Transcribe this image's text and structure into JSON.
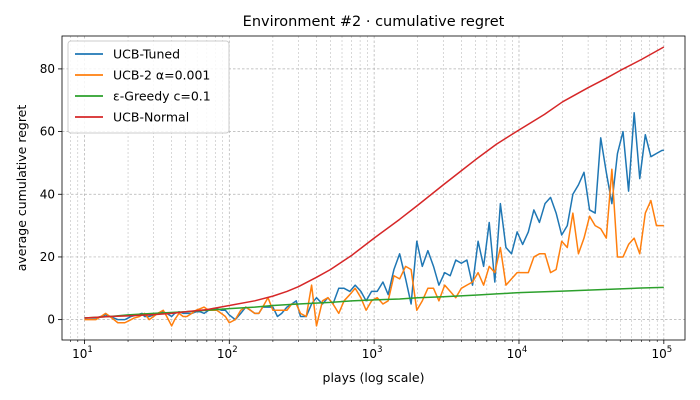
{
  "chart_data": {
    "type": "line",
    "title": "Environment #2 · cumulative regret",
    "xlabel": "plays (log scale)",
    "ylabel": "average cumulative regret",
    "xscale": "log",
    "xlim": [
      7,
      140000
    ],
    "ylim": [
      -6.5,
      90.5
    ],
    "xticks": [
      {
        "value": 10,
        "base": "10",
        "exp": "1"
      },
      {
        "value": 100,
        "base": "10",
        "exp": "2"
      },
      {
        "value": 1000,
        "base": "10",
        "exp": "3"
      },
      {
        "value": 10000,
        "base": "10",
        "exp": "4"
      },
      {
        "value": 100000,
        "base": "10",
        "exp": "5"
      }
    ],
    "yticks": [
      0,
      20,
      40,
      60,
      80
    ],
    "grid": true,
    "legend_position": "top-left",
    "series": [
      {
        "name": "UCB-Tuned",
        "color": "#1f77b4",
        "points": [
          [
            10,
            0.5
          ],
          [
            11,
            0.5
          ],
          [
            12,
            0.5
          ],
          [
            13,
            1
          ],
          [
            14,
            1.5
          ],
          [
            15,
            1
          ],
          [
            16,
            0.5
          ],
          [
            17,
            0
          ],
          [
            18,
            0
          ],
          [
            19,
            0
          ],
          [
            20,
            0.5
          ],
          [
            21,
            1
          ],
          [
            23,
            1.5
          ],
          [
            25,
            2
          ],
          [
            26,
            1
          ],
          [
            28,
            1
          ],
          [
            30,
            1.5
          ],
          [
            32,
            2
          ],
          [
            35,
            2.5
          ],
          [
            37,
            2
          ],
          [
            40,
            1
          ],
          [
            42,
            2
          ],
          [
            45,
            2.5
          ],
          [
            48,
            2
          ],
          [
            51,
            2
          ],
          [
            55,
            2
          ],
          [
            59,
            2.5
          ],
          [
            63,
            2.5
          ],
          [
            67,
            2
          ],
          [
            72,
            3
          ],
          [
            77,
            3.5
          ],
          [
            82,
            3.5
          ],
          [
            88,
            3
          ],
          [
            94,
            3
          ],
          [
            100,
            1.5
          ],
          [
            110,
            0
          ],
          [
            120,
            2
          ],
          [
            130,
            4
          ],
          [
            140,
            3
          ],
          [
            150,
            2
          ],
          [
            160,
            2
          ],
          [
            170,
            4
          ],
          [
            185,
            4
          ],
          [
            200,
            4
          ],
          [
            215,
            1
          ],
          [
            230,
            2
          ],
          [
            250,
            4
          ],
          [
            270,
            5
          ],
          [
            290,
            6
          ],
          [
            310,
            1
          ],
          [
            340,
            1
          ],
          [
            370,
            5
          ],
          [
            400,
            7
          ],
          [
            440,
            5
          ],
          [
            480,
            7
          ],
          [
            520,
            5
          ],
          [
            570,
            10
          ],
          [
            620,
            10
          ],
          [
            680,
            9
          ],
          [
            740,
            11
          ],
          [
            810,
            9
          ],
          [
            880,
            6
          ],
          [
            960,
            9
          ],
          [
            1050,
            9
          ],
          [
            1150,
            12
          ],
          [
            1250,
            8
          ],
          [
            1370,
            16
          ],
          [
            1500,
            21
          ],
          [
            1650,
            13
          ],
          [
            1800,
            5
          ],
          [
            1970,
            25
          ],
          [
            2150,
            17
          ],
          [
            2350,
            22
          ],
          [
            2570,
            17
          ],
          [
            2800,
            11
          ],
          [
            3070,
            15
          ],
          [
            3350,
            14
          ],
          [
            3660,
            19
          ],
          [
            4000,
            18
          ],
          [
            4370,
            19
          ],
          [
            4780,
            11
          ],
          [
            5220,
            25
          ],
          [
            5700,
            17
          ],
          [
            6230,
            31
          ],
          [
            6810,
            12
          ],
          [
            7440,
            37
          ],
          [
            8130,
            23
          ],
          [
            8880,
            21
          ],
          [
            9710,
            28
          ],
          [
            10600,
            24
          ],
          [
            11600,
            28
          ],
          [
            12670,
            35
          ],
          [
            13840,
            31
          ],
          [
            15120,
            37
          ],
          [
            16520,
            39
          ],
          [
            18050,
            34
          ],
          [
            19720,
            27
          ],
          [
            21550,
            30
          ],
          [
            23550,
            40
          ],
          [
            25730,
            43
          ],
          [
            28110,
            47
          ],
          [
            30720,
            35
          ],
          [
            33560,
            34
          ],
          [
            36670,
            58
          ],
          [
            40070,
            47
          ],
          [
            43780,
            37
          ],
          [
            47840,
            53
          ],
          [
            52270,
            60
          ],
          [
            57110,
            41
          ],
          [
            62400,
            66
          ],
          [
            68180,
            45
          ],
          [
            74490,
            59
          ],
          [
            81390,
            52
          ],
          [
            88930,
            53
          ],
          [
            97170,
            54
          ],
          [
            100000,
            54
          ]
        ]
      },
      {
        "name": "UCB-2 α=0.001",
        "color": "#ff7f0e",
        "points": [
          [
            10,
            0
          ],
          [
            11,
            0
          ],
          [
            12,
            0
          ],
          [
            13,
            1
          ],
          [
            14,
            2
          ],
          [
            15,
            1
          ],
          [
            16,
            0
          ],
          [
            17,
            -1
          ],
          [
            18,
            -1
          ],
          [
            19,
            -1
          ],
          [
            20,
            -0.5
          ],
          [
            22,
            0.5
          ],
          [
            24,
            1
          ],
          [
            26,
            2
          ],
          [
            28,
            0
          ],
          [
            30,
            1
          ],
          [
            32,
            2
          ],
          [
            35,
            3
          ],
          [
            37,
            1
          ],
          [
            40,
            -2
          ],
          [
            42,
            0
          ],
          [
            45,
            2
          ],
          [
            48,
            1
          ],
          [
            51,
            1
          ],
          [
            55,
            2
          ],
          [
            59,
            3
          ],
          [
            63,
            3.5
          ],
          [
            67,
            4
          ],
          [
            72,
            3
          ],
          [
            77,
            3
          ],
          [
            82,
            3
          ],
          [
            88,
            2
          ],
          [
            94,
            1
          ],
          [
            100,
            -1
          ],
          [
            110,
            0
          ],
          [
            120,
            3
          ],
          [
            130,
            4
          ],
          [
            140,
            3
          ],
          [
            150,
            2
          ],
          [
            160,
            2
          ],
          [
            170,
            4
          ],
          [
            185,
            7
          ],
          [
            200,
            3
          ],
          [
            215,
            3
          ],
          [
            230,
            3
          ],
          [
            250,
            3
          ],
          [
            270,
            5
          ],
          [
            290,
            5
          ],
          [
            310,
            2
          ],
          [
            340,
            1
          ],
          [
            370,
            11
          ],
          [
            400,
            -2
          ],
          [
            440,
            6
          ],
          [
            480,
            7
          ],
          [
            520,
            5
          ],
          [
            570,
            2
          ],
          [
            620,
            6
          ],
          [
            680,
            8
          ],
          [
            740,
            10
          ],
          [
            810,
            7
          ],
          [
            880,
            3
          ],
          [
            960,
            6
          ],
          [
            1050,
            7
          ],
          [
            1150,
            5
          ],
          [
            1250,
            6
          ],
          [
            1370,
            14
          ],
          [
            1500,
            13
          ],
          [
            1650,
            17
          ],
          [
            1800,
            16
          ],
          [
            1970,
            3
          ],
          [
            2150,
            6
          ],
          [
            2350,
            10
          ],
          [
            2570,
            10
          ],
          [
            2800,
            6
          ],
          [
            3070,
            11
          ],
          [
            3350,
            9
          ],
          [
            3660,
            7
          ],
          [
            4000,
            10
          ],
          [
            4370,
            11
          ],
          [
            4780,
            12
          ],
          [
            5220,
            15
          ],
          [
            5700,
            11
          ],
          [
            6230,
            17
          ],
          [
            6810,
            15
          ],
          [
            7440,
            23
          ],
          [
            8130,
            11
          ],
          [
            8880,
            13
          ],
          [
            9710,
            15
          ],
          [
            10600,
            15
          ],
          [
            11600,
            15
          ],
          [
            12670,
            20
          ],
          [
            13840,
            21
          ],
          [
            15120,
            21
          ],
          [
            16520,
            15
          ],
          [
            18050,
            16
          ],
          [
            19720,
            25
          ],
          [
            21550,
            23
          ],
          [
            23550,
            34
          ],
          [
            25730,
            21
          ],
          [
            28110,
            26
          ],
          [
            30720,
            33
          ],
          [
            33560,
            30
          ],
          [
            36670,
            29
          ],
          [
            40070,
            26
          ],
          [
            43780,
            48
          ],
          [
            47840,
            20
          ],
          [
            52270,
            20
          ],
          [
            57110,
            24
          ],
          [
            62400,
            26
          ],
          [
            68180,
            21
          ],
          [
            74490,
            34
          ],
          [
            81390,
            38
          ],
          [
            88930,
            30
          ],
          [
            100000,
            30
          ]
        ]
      },
      {
        "name": "ε-Greedy c=0.1",
        "color": "#2ca02c",
        "points": [
          [
            10,
            0.5
          ],
          [
            15,
            1
          ],
          [
            20,
            1.5
          ],
          [
            30,
            2
          ],
          [
            50,
            2.5
          ],
          [
            70,
            3
          ],
          [
            100,
            3.5
          ],
          [
            150,
            4
          ],
          [
            200,
            4.5
          ],
          [
            300,
            5
          ],
          [
            500,
            5.5
          ],
          [
            700,
            6
          ],
          [
            1000,
            6.3
          ],
          [
            1500,
            6.6
          ],
          [
            2000,
            7
          ],
          [
            3000,
            7.3
          ],
          [
            5000,
            7.8
          ],
          [
            7000,
            8.2
          ],
          [
            10000,
            8.6
          ],
          [
            15000,
            8.9
          ],
          [
            20000,
            9.1
          ],
          [
            30000,
            9.4
          ],
          [
            50000,
            9.8
          ],
          [
            70000,
            10.1
          ],
          [
            100000,
            10.3
          ]
        ]
      },
      {
        "name": "UCB-Normal",
        "color": "#d62728",
        "points": [
          [
            10,
            0.5
          ],
          [
            15,
            1
          ],
          [
            20,
            1.2
          ],
          [
            30,
            1.6
          ],
          [
            40,
            2
          ],
          [
            50,
            2.5
          ],
          [
            70,
            3.2
          ],
          [
            100,
            4.5
          ],
          [
            150,
            6
          ],
          [
            200,
            7.5
          ],
          [
            250,
            9
          ],
          [
            300,
            10.5
          ],
          [
            400,
            13.5
          ],
          [
            500,
            16
          ],
          [
            700,
            20.5
          ],
          [
            1000,
            26
          ],
          [
            1500,
            32
          ],
          [
            2000,
            36.5
          ],
          [
            3000,
            43
          ],
          [
            4000,
            47.5
          ],
          [
            5000,
            51
          ],
          [
            7000,
            56
          ],
          [
            10000,
            60.5
          ],
          [
            15000,
            65.5
          ],
          [
            20000,
            69.5
          ],
          [
            30000,
            74
          ],
          [
            40000,
            77
          ],
          [
            50000,
            79.5
          ],
          [
            70000,
            83
          ],
          [
            100000,
            87
          ]
        ]
      }
    ]
  }
}
